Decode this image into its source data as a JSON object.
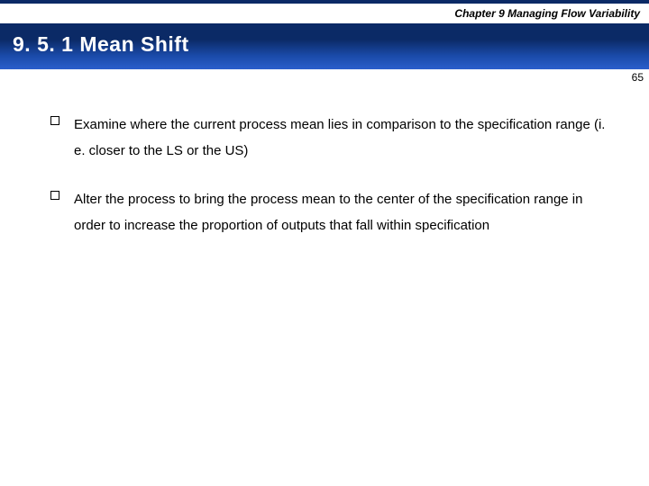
{
  "header": {
    "chapter_label": "Chapter 9  Managing Flow Variability",
    "title": "9. 5. 1 Mean Shift",
    "page_number": "65"
  },
  "colors": {
    "title_bar_top": "#0b2a66",
    "title_bar_bottom": "#2a5ecc",
    "title_text": "#ffffff",
    "body_text": "#000000",
    "background": "#ffffff",
    "bullet_border": "#000000"
  },
  "typography": {
    "chapter_fontsize": 12,
    "title_fontsize": 23,
    "body_fontsize": 15,
    "page_num_fontsize": 12,
    "font_family": "Arial"
  },
  "bullets": [
    {
      "text": "Examine where the current process mean lies in comparison to the specification range (i. e. closer to the LS or the US)"
    },
    {
      "text": "Alter the process to bring the process mean to the center of the specification range in order to increase the proportion of outputs that fall within specification"
    }
  ]
}
